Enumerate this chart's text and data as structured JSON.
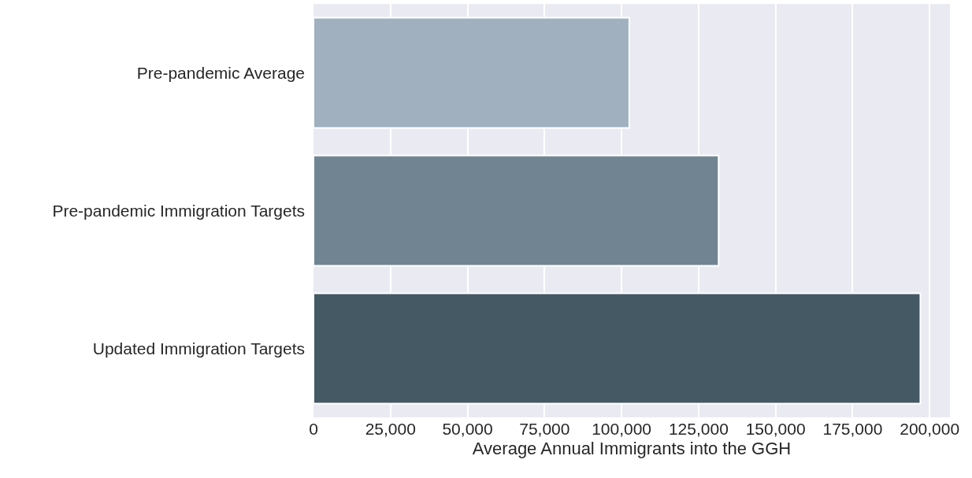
{
  "chart_data": {
    "type": "bar",
    "orientation": "horizontal",
    "xlabel": "Average Annual Immigrants into the GGH",
    "categories": [
      "Pre-pandemic Average",
      "Pre-pandemic Immigration Targets",
      "Updated Immigration Targets"
    ],
    "values": [
      102500,
      131500,
      197000
    ],
    "colors": [
      "#a0b0bf",
      "#718491",
      "#445963"
    ],
    "xlim": [
      0,
      206600
    ],
    "xticks": [
      {
        "value": 0,
        "label": "0"
      },
      {
        "value": 25000,
        "label": "25,000"
      },
      {
        "value": 50000,
        "label": "50,000"
      },
      {
        "value": 75000,
        "label": "75,000"
      },
      {
        "value": 100000,
        "label": "100,000"
      },
      {
        "value": 125000,
        "label": "125,000"
      },
      {
        "value": 150000,
        "label": "150,000"
      },
      {
        "value": 175000,
        "label": "175,000"
      },
      {
        "value": 200000,
        "label": "200,000"
      }
    ],
    "grid": "x"
  }
}
